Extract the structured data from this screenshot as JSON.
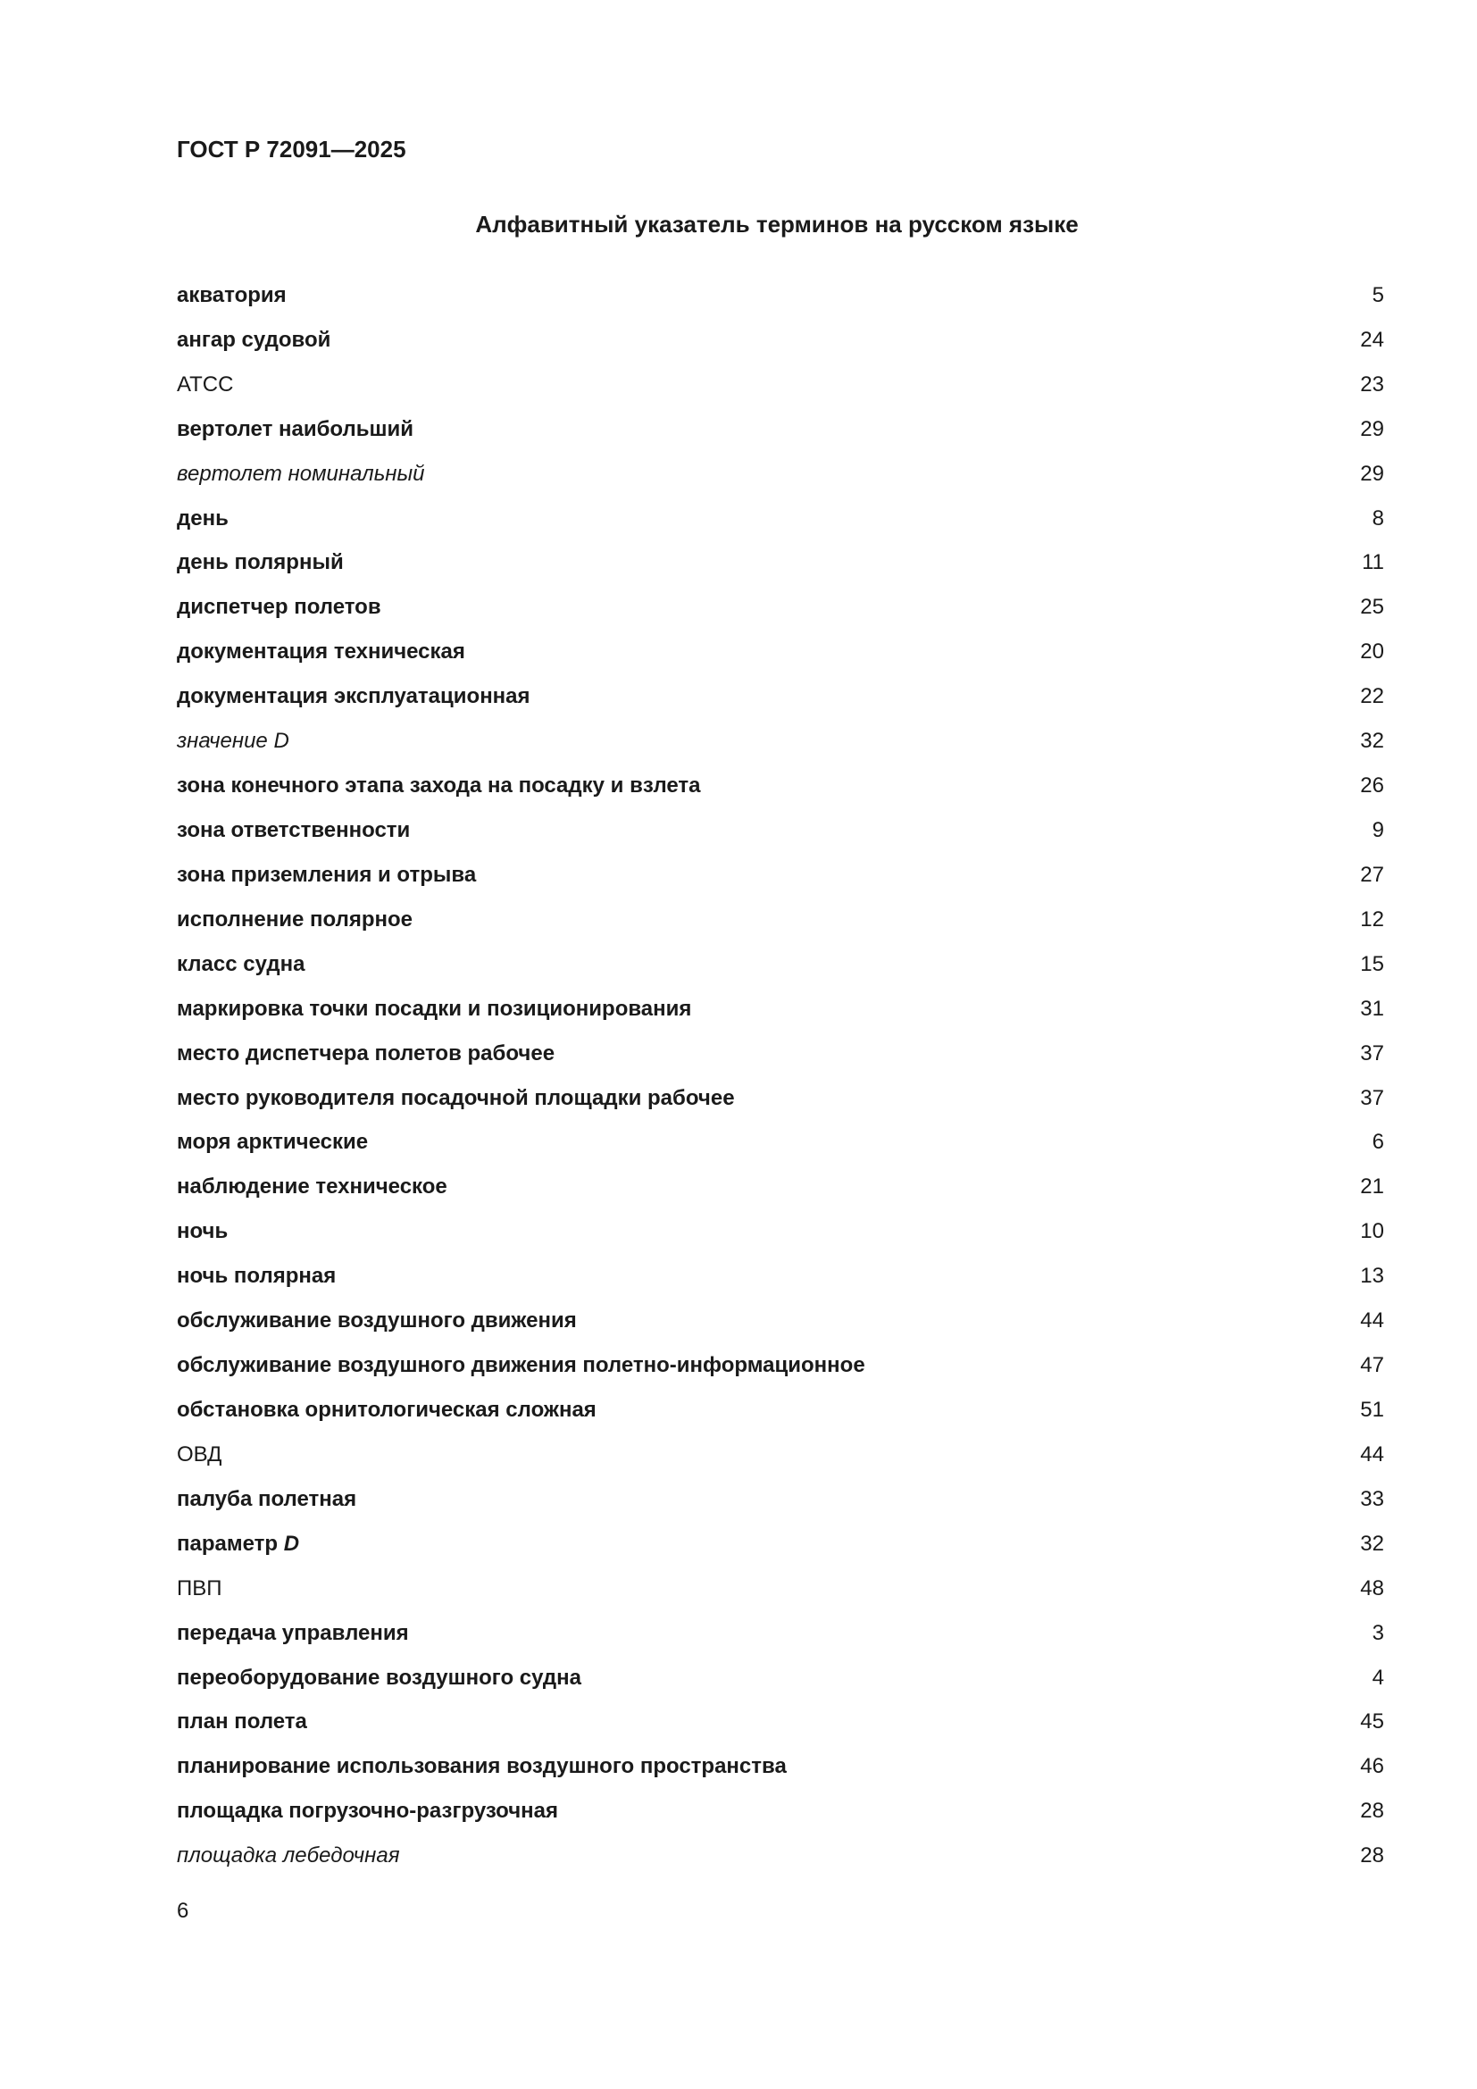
{
  "header": {
    "doc_code": "ГОСТ Р 72091—2025"
  },
  "title": "Алфавитный указатель терминов на русском языке",
  "entries": [
    {
      "term": "акватория",
      "style": "bold",
      "page": "5"
    },
    {
      "term": "ангар судовой",
      "style": "bold",
      "page": "24"
    },
    {
      "term": "АТСС",
      "style": "normal",
      "page": "23"
    },
    {
      "term": "вертолет наибольший",
      "style": "bold",
      "page": "29"
    },
    {
      "term": "вертолет номинальный",
      "style": "italic",
      "page": "29"
    },
    {
      "term": "день",
      "style": "bold",
      "page": "8"
    },
    {
      "term": "день полярный",
      "style": "bold",
      "page": "11"
    },
    {
      "term": "диспетчер полетов",
      "style": "bold",
      "page": "25"
    },
    {
      "term": "документация техническая",
      "style": "bold",
      "page": "20"
    },
    {
      "term": "документация эксплуатационная",
      "style": "bold",
      "page": "22"
    },
    {
      "term": "значение",
      "suffix": "D",
      "style": "italic",
      "page": "32"
    },
    {
      "term": "зона конечного этапа захода на посадку и взлета",
      "style": "bold",
      "page": "26"
    },
    {
      "term": "зона ответственности",
      "style": "bold",
      "page": "9"
    },
    {
      "term": "зона приземления и отрыва",
      "style": "bold",
      "page": "27"
    },
    {
      "term": "исполнение полярное",
      "style": "bold",
      "page": "12"
    },
    {
      "term": "класс судна",
      "style": "bold",
      "page": "15"
    },
    {
      "term": "маркировка точки посадки и позиционирования",
      "style": "bold",
      "page": "31"
    },
    {
      "term": "место диспетчера полетов рабочее",
      "style": "bold",
      "page": "37"
    },
    {
      "term": "место руководителя посадочной площадки рабочее",
      "style": "bold",
      "page": "37"
    },
    {
      "term": "моря арктические",
      "style": "bold",
      "page": "6"
    },
    {
      "term": "наблюдение техническое",
      "style": "bold",
      "page": "21"
    },
    {
      "term": "ночь",
      "style": "bold",
      "page": "10"
    },
    {
      "term": "ночь полярная",
      "style": "bold",
      "page": "13"
    },
    {
      "term": "обслуживание воздушного движения",
      "style": "bold",
      "page": "44"
    },
    {
      "term": "обслуживание воздушного движения полетно-информационное",
      "style": "bold",
      "page": "47"
    },
    {
      "term": "обстановка орнитологическая сложная",
      "style": "bold",
      "page": "51"
    },
    {
      "term": "ОВД",
      "style": "normal",
      "page": "44"
    },
    {
      "term": "палуба полетная",
      "style": "bold",
      "page": "33"
    },
    {
      "term": "параметр",
      "suffix": "D",
      "style": "bold",
      "page": "32"
    },
    {
      "term": "ПВП",
      "style": "normal",
      "page": "48"
    },
    {
      "term": "передача управления",
      "style": "bold",
      "page": "3"
    },
    {
      "term": "переоборудование воздушного судна",
      "style": "bold",
      "page": "4"
    },
    {
      "term": "план полета",
      "style": "bold",
      "page": "45"
    },
    {
      "term": "планирование использования воздушного пространства",
      "style": "bold",
      "page": "46"
    },
    {
      "term": "площадка погрузочно-разгрузочная",
      "style": "bold",
      "page": "28"
    },
    {
      "term": "площадка лебедочная",
      "style": "italic",
      "page": "28"
    }
  ],
  "footer": {
    "page_number": "6"
  }
}
